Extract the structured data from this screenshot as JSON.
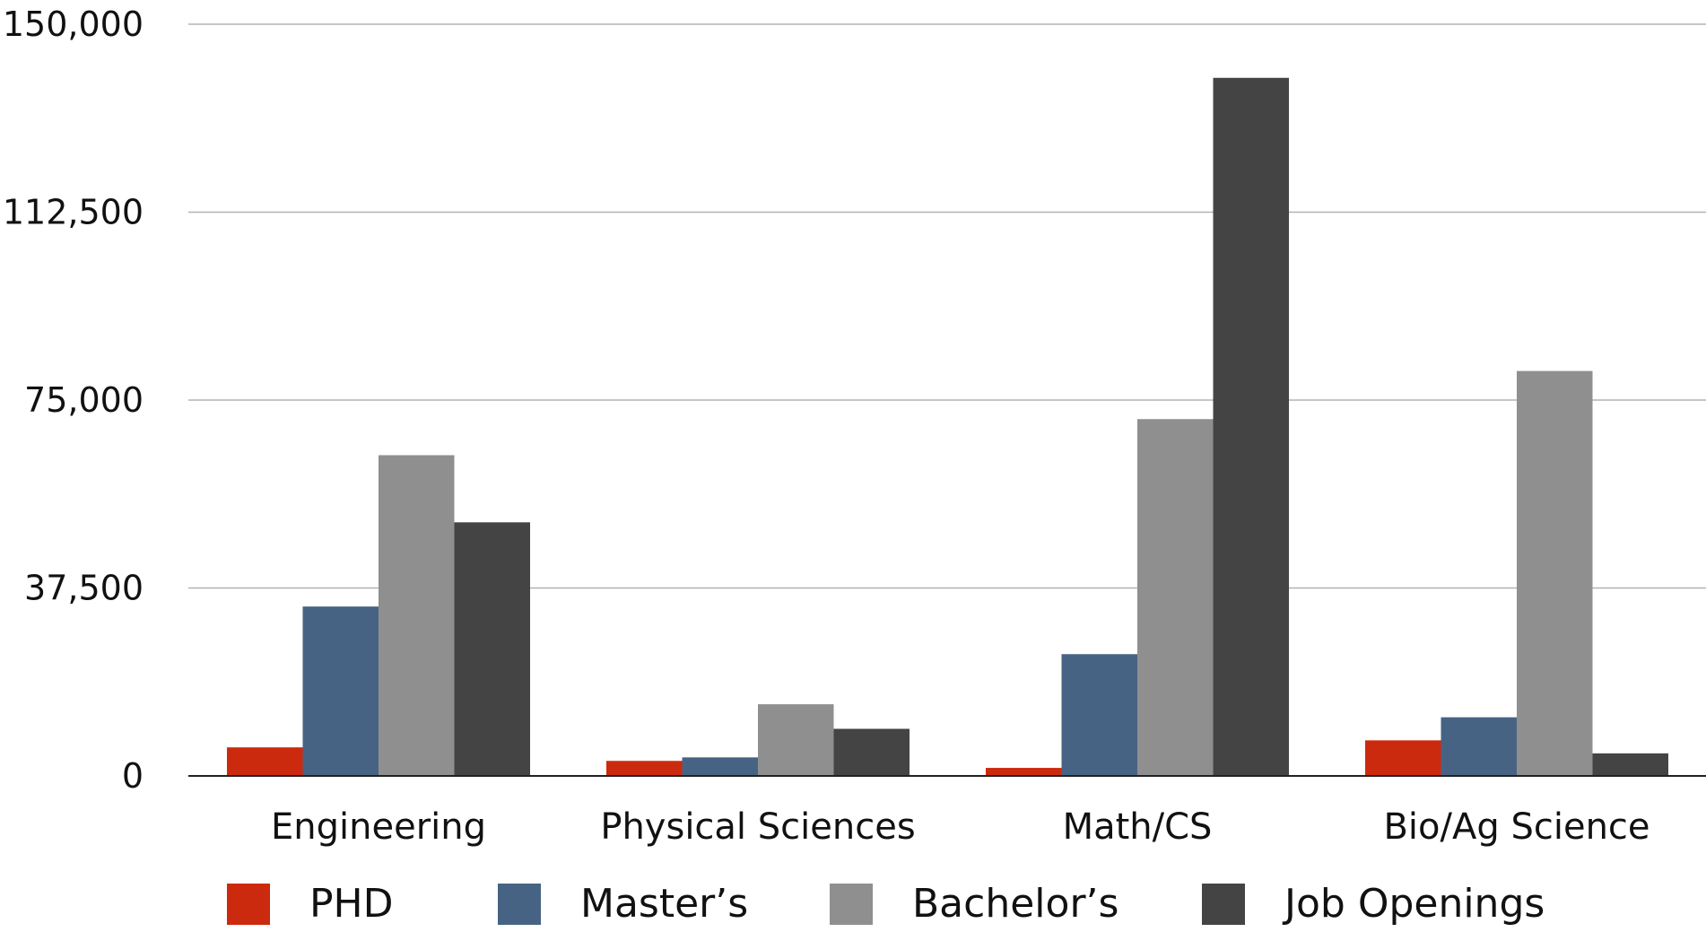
{
  "chart_data": {
    "type": "bar",
    "title": "",
    "xlabel": "",
    "ylabel": "",
    "categories": [
      "Engineering",
      "Physical Sciences",
      "Math/CS",
      "Bio/Ag Science"
    ],
    "series": [
      {
        "name": "PHD",
        "color": "#cc2a0e",
        "values": [
          5700,
          3000,
          1600,
          7100
        ]
      },
      {
        "name": "Master’s",
        "color": "#476384",
        "values": [
          33800,
          3700,
          24300,
          11700
        ]
      },
      {
        "name": "Bachelor’s",
        "color": "#8f8f8f",
        "values": [
          64000,
          14300,
          71200,
          80800
        ]
      },
      {
        "name": "Job Openings",
        "color": "#444444",
        "values": [
          50600,
          9400,
          139300,
          4500
        ]
      }
    ],
    "ylim": [
      0,
      150000
    ],
    "yticks": [
      0,
      37500,
      75000,
      112500,
      150000
    ],
    "ytick_labels": [
      "0",
      "37,500",
      "75,000",
      "112,500",
      "150,000"
    ],
    "grid": true,
    "legend_position": "bottom"
  }
}
